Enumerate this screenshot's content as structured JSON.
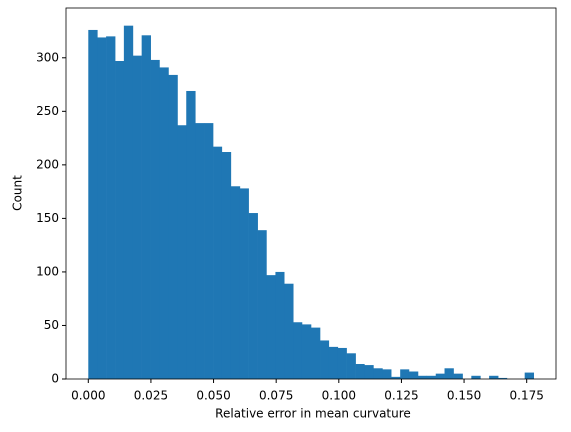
{
  "chart_data": {
    "type": "histogram",
    "xlabel": "Relative error in mean curvature",
    "ylabel": "Count",
    "color": "#1f77b4",
    "bins": [
      0,
      0.0036,
      0.0071,
      0.0107,
      0.0142,
      0.0178,
      0.0213,
      0.0249,
      0.0284,
      0.032,
      0.0356,
      0.0391,
      0.0427,
      0.0462,
      0.0498,
      0.0533,
      0.0569,
      0.0605,
      0.064,
      0.0676,
      0.0711,
      0.0747,
      0.0782,
      0.0818,
      0.0853,
      0.0889,
      0.0925,
      0.096,
      0.0996,
      0.1031,
      0.1067,
      0.1102,
      0.1138,
      0.1174,
      0.1209,
      0.1245,
      0.128,
      0.1316,
      0.1351,
      0.1387,
      0.1422,
      0.1458,
      0.1494,
      0.1529,
      0.1565,
      0.16,
      0.1636,
      0.1671,
      0.1707,
      0.1742,
      0.1778
    ],
    "values": [
      326,
      319,
      320,
      297,
      330,
      302,
      321,
      298,
      291,
      284,
      237,
      269,
      239,
      239,
      217,
      212,
      180,
      178,
      155,
      139,
      97,
      100,
      89,
      53,
      51,
      48,
      36,
      30,
      29,
      24,
      14,
      13,
      10,
      9,
      2,
      9,
      7,
      3,
      3,
      5,
      10,
      5,
      0,
      3,
      0,
      3,
      1,
      0,
      0,
      6
    ],
    "xlim": [
      -0.0089,
      0.1867
    ],
    "ylim": [
      0,
      346.5
    ],
    "xticks": [
      {
        "value": 0,
        "label": "0.000"
      },
      0.025,
      {
        "value": 0.05,
        "label": "0.050"
      },
      0.075,
      {
        "value": 0.1,
        "label": "0.100"
      },
      0.125,
      {
        "value": 0.15,
        "label": "0.150"
      },
      0.175
    ],
    "yticks": [
      0,
      50,
      100,
      150,
      200,
      250,
      300
    ]
  }
}
